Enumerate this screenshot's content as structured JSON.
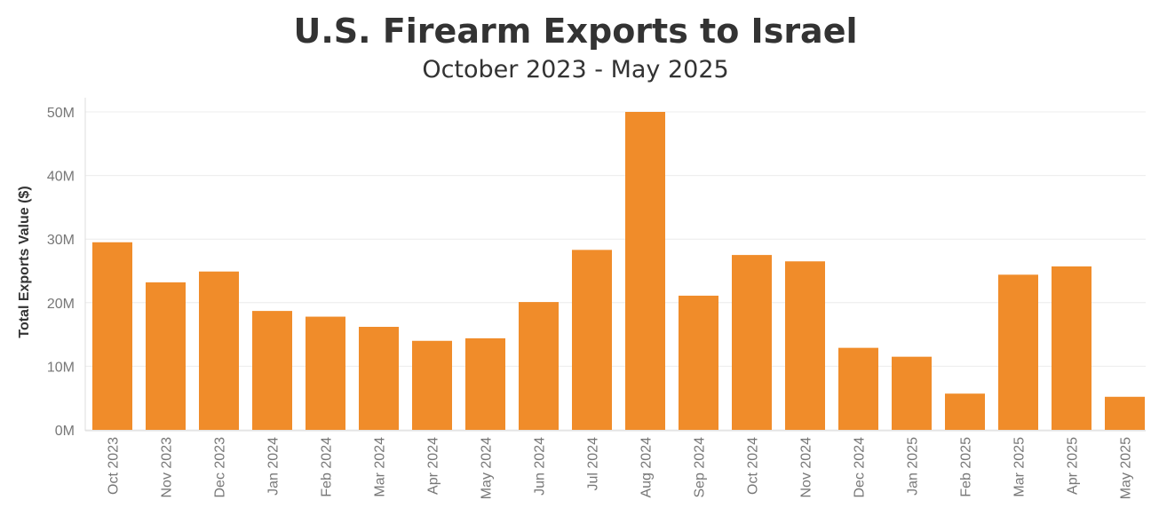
{
  "chart_data": {
    "type": "bar",
    "title": "U.S. Firearm Exports to Israel",
    "subtitle": "October 2023 - May 2025",
    "xlabel": "",
    "ylabel": "Total Exports Value ($)",
    "ylim": [
      0,
      50000000
    ],
    "yticks": [
      {
        "value": 0,
        "label": "0M"
      },
      {
        "value": 10000000,
        "label": "10M"
      },
      {
        "value": 20000000,
        "label": "20M"
      },
      {
        "value": 30000000,
        "label": "30M"
      },
      {
        "value": 40000000,
        "label": "40M"
      },
      {
        "value": 50000000,
        "label": "50M"
      }
    ],
    "grid": true,
    "bar_color": "#F08C2A",
    "categories": [
      "Oct 2023",
      "Nov 2023",
      "Dec 2023",
      "Jan 2024",
      "Feb 2024",
      "Mar 2024",
      "Apr 2024",
      "May 2024",
      "Jun 2024",
      "Jul 2024",
      "Aug 2024",
      "Sep 2024",
      "Oct 2024",
      "Nov 2024",
      "Dec 2024",
      "Jan 2025",
      "Feb 2025",
      "Mar 2025",
      "Apr 2025",
      "May 2025"
    ],
    "values": [
      29500000,
      23200000,
      24900000,
      18700000,
      17800000,
      16200000,
      14000000,
      14400000,
      20100000,
      28300000,
      50000000,
      21100000,
      27500000,
      26500000,
      12900000,
      11500000,
      5700000,
      24400000,
      25700000,
      5200000
    ]
  }
}
